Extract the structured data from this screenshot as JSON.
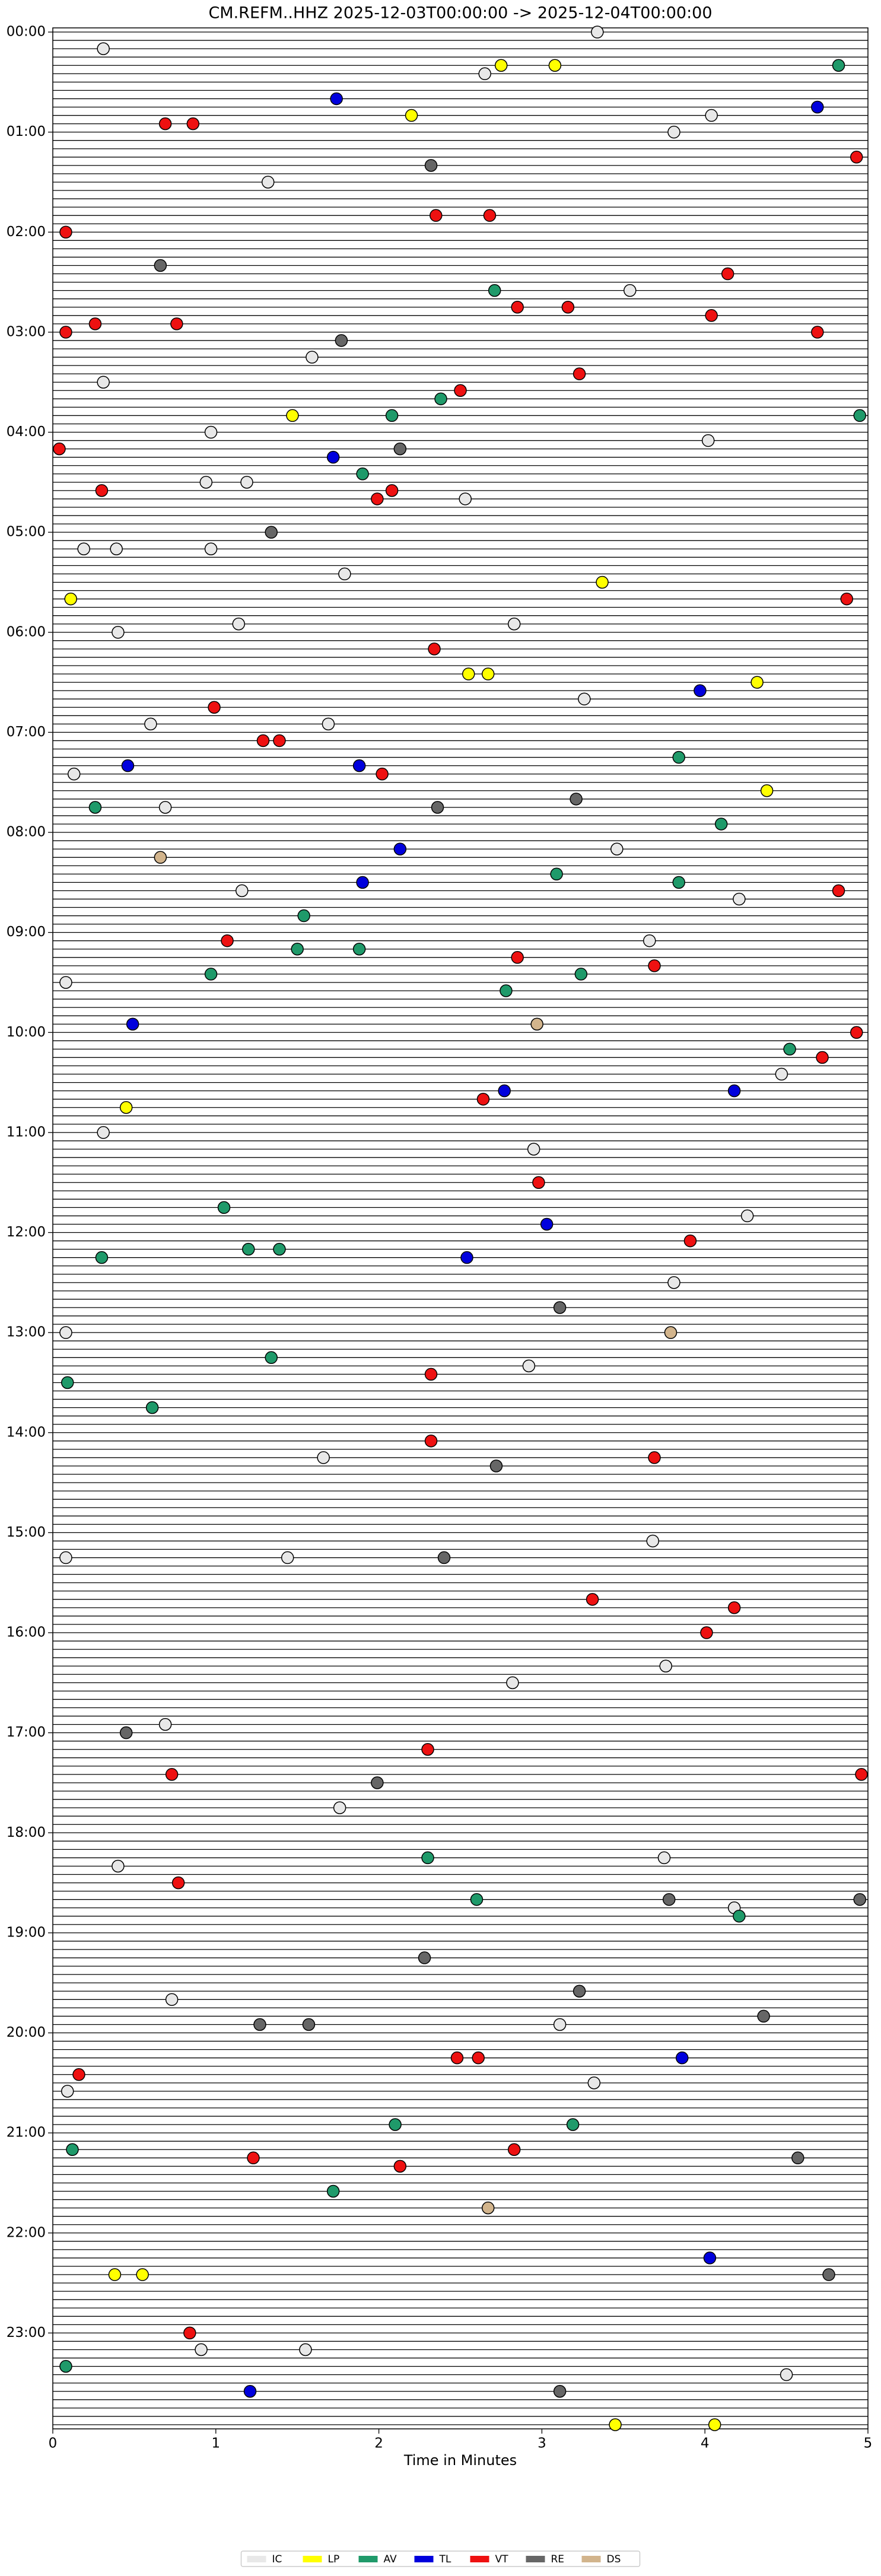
{
  "chart_data": {
    "type": "helicorder",
    "title": "CM.REFM..HHZ  2025-12-03T00:00:00 -> 2025-12-04T00:00:00",
    "x_label": "Time in Minutes",
    "xlim": [
      0,
      5
    ],
    "xticks": [
      0,
      1,
      2,
      3,
      4,
      5
    ],
    "ylim": [
      0,
      24
    ],
    "yticks": [
      {
        "value": 0,
        "label": "00:00"
      },
      {
        "value": 1,
        "label": "01:00"
      },
      {
        "value": 2,
        "label": "02:00"
      },
      {
        "value": 3,
        "label": "03:00"
      },
      {
        "value": 4,
        "label": "04:00"
      },
      {
        "value": 5,
        "label": "05:00"
      },
      {
        "value": 6,
        "label": "06:00"
      },
      {
        "value": 7,
        "label": "07:00"
      },
      {
        "value": 8,
        "label": "08:00"
      },
      {
        "value": 9,
        "label": "09:00"
      },
      {
        "value": 10,
        "label": "10:00"
      },
      {
        "value": 11,
        "label": "11:00"
      },
      {
        "value": 12,
        "label": "12:00"
      },
      {
        "value": 13,
        "label": "13:00"
      },
      {
        "value": 14,
        "label": "14:00"
      },
      {
        "value": 15,
        "label": "15:00"
      },
      {
        "value": 16,
        "label": "16:00"
      },
      {
        "value": 17,
        "label": "17:00"
      },
      {
        "value": 18,
        "label": "18:00"
      },
      {
        "value": 19,
        "label": "19:00"
      },
      {
        "value": 20,
        "label": "20:00"
      },
      {
        "value": 21,
        "label": "21:00"
      },
      {
        "value": 22,
        "label": "22:00"
      },
      {
        "value": 23,
        "label": "23:00"
      }
    ],
    "legend": "bottom",
    "series": [
      {
        "name": "IC",
        "color": "#e8e8e8",
        "x": [
          3.34,
          0.31,
          2.65,
          4.04,
          3.81,
          1.32,
          3.54,
          1.59,
          0.31,
          0.97,
          4.02,
          0.94,
          1.19,
          2.53,
          0.19,
          0.39,
          0.97,
          1.79,
          0.4,
          1.14,
          2.83,
          0.6,
          1.69,
          3.26,
          0.13,
          0.69,
          3.46,
          1.16,
          4.21,
          3.66,
          0.08,
          4.47,
          0.31,
          2.95,
          4.26,
          3.81,
          0.08,
          2.92,
          1.66,
          1.44,
          3.68,
          0.08,
          3.76,
          2.82,
          0.69,
          1.76,
          3.75,
          0.4,
          4.18,
          0.73,
          3.11,
          0.09,
          3.32,
          0.91,
          4.5,
          1.55
        ],
        "values": [
          0,
          0.1667,
          0.4167,
          0.8333,
          1.0,
          1.5,
          2.5833,
          3.25,
          3.5,
          4.0,
          4.0833,
          4.5,
          4.5,
          4.6667,
          5.1667,
          5.1667,
          5.1667,
          5.4167,
          6.0,
          5.9167,
          5.9167,
          6.9167,
          6.9167,
          6.6667,
          7.4167,
          7.75,
          8.1667,
          8.5833,
          8.6667,
          9.0833,
          9.5,
          10.4167,
          11.0,
          11.1667,
          11.8333,
          12.5,
          13.0,
          13.3333,
          14.25,
          15.25,
          15.0833,
          15.25,
          16.3333,
          16.5,
          16.9167,
          17.75,
          18.25,
          18.3333,
          18.75,
          19.6667,
          19.9167,
          20.5833,
          20.5,
          23.1667,
          23.4167,
          23.1667
        ]
      },
      {
        "name": "LP",
        "color": "#ffff00",
        "x": [
          2.75,
          3.08,
          2.2,
          1.47,
          3.37,
          0.11,
          2.55,
          2.67,
          4.32,
          4.38,
          0.45,
          0.38,
          0.55,
          3.45,
          4.06
        ],
        "values": [
          0.3333,
          0.3333,
          0.8333,
          3.8333,
          5.5,
          5.6667,
          6.4167,
          6.4167,
          6.5,
          7.5833,
          10.75,
          22.4167,
          22.4167,
          23.9167,
          23.9167
        ]
      },
      {
        "name": "AV",
        "color": "#1f9a6a",
        "x": [
          4.82,
          2.71,
          2.38,
          4.95,
          2.08,
          1.9,
          3.84,
          0.26,
          4.1,
          3.09,
          3.84,
          1.54,
          1.5,
          1.88,
          3.24,
          0.97,
          2.78,
          4.52,
          1.05,
          1.2,
          1.39,
          0.3,
          1.34,
          0.09,
          0.61,
          2.3,
          2.6,
          4.21,
          2.1,
          3.19,
          0.12,
          1.72,
          0.08
        ],
        "values": [
          0.3333,
          2.5833,
          3.6667,
          3.8333,
          3.8333,
          4.4167,
          7.25,
          7.75,
          7.9167,
          8.4167,
          8.5,
          8.8333,
          9.1667,
          9.1667,
          9.4167,
          9.4167,
          9.5833,
          10.1667,
          11.75,
          12.1667,
          12.1667,
          12.25,
          13.25,
          13.5,
          13.75,
          18.25,
          18.6667,
          18.8333,
          20.9167,
          20.9167,
          21.1667,
          21.5833,
          23.3333
        ]
      },
      {
        "name": "TL",
        "color": "#0000dd",
        "x": [
          1.74,
          4.69,
          1.72,
          3.97,
          0.46,
          1.88,
          2.13,
          1.9,
          0.49,
          4.18,
          2.77,
          3.03,
          2.54,
          3.86,
          4.03,
          1.21
        ],
        "values": [
          0.6667,
          0.75,
          4.25,
          6.5833,
          7.3333,
          7.3333,
          8.1667,
          8.5,
          9.9167,
          10.5833,
          10.5833,
          11.9167,
          12.25,
          20.25,
          22.25,
          23.5833
        ]
      },
      {
        "name": "VT",
        "color": "#ee1111",
        "x": [
          0.69,
          0.86,
          4.93,
          2.35,
          2.68,
          0.08,
          4.14,
          2.85,
          3.16,
          4.04,
          0.76,
          0.26,
          0.08,
          4.69,
          3.23,
          2.5,
          0.04,
          0.3,
          2.08,
          1.99,
          4.87,
          2.34,
          0.99,
          1.29,
          1.39,
          2.02,
          4.82,
          1.07,
          2.85,
          3.69,
          4.93,
          4.72,
          2.64,
          2.98,
          3.91,
          2.32,
          2.32,
          3.69,
          3.31,
          4.18,
          4.01,
          2.3,
          0.73,
          4.96,
          0.77,
          2.48,
          2.61,
          0.16,
          2.83,
          1.23,
          2.13,
          0.84
        ],
        "values": [
          0.9167,
          0.9167,
          1.25,
          1.8333,
          1.8333,
          2.0,
          2.4167,
          2.75,
          2.75,
          2.8333,
          2.9167,
          2.9167,
          3.0,
          3.0,
          3.4167,
          3.5833,
          4.1667,
          4.5833,
          4.5833,
          4.6667,
          5.6667,
          6.1667,
          6.75,
          7.0833,
          7.0833,
          7.4167,
          8.5833,
          9.0833,
          9.25,
          9.3333,
          10.0,
          10.25,
          10.6667,
          11.5,
          12.0833,
          13.4167,
          14.0833,
          14.25,
          15.6667,
          15.75,
          16.0,
          17.1667,
          17.4167,
          17.4167,
          18.5,
          20.25,
          20.25,
          20.4167,
          21.1667,
          21.25,
          21.3333,
          23.0
        ]
      },
      {
        "name": "RE",
        "color": "#666666",
        "x": [
          2.32,
          0.66,
          1.77,
          2.13,
          1.34,
          3.21,
          2.36,
          3.11,
          2.72,
          2.4,
          0.45,
          1.99,
          3.78,
          4.95,
          2.28,
          3.23,
          4.36,
          1.27,
          1.57,
          4.57,
          4.76,
          3.11
        ],
        "values": [
          1.3333,
          2.3333,
          3.0833,
          4.1667,
          5.0,
          7.6667,
          7.75,
          12.75,
          14.3333,
          15.25,
          17.0,
          17.5,
          18.6667,
          18.6667,
          19.25,
          19.5833,
          19.8333,
          19.9167,
          19.9167,
          21.25,
          22.4167,
          23.5833
        ]
      },
      {
        "name": "DS",
        "color": "#d2b48c",
        "x": [
          0.66,
          2.97,
          3.79,
          2.67
        ],
        "values": [
          8.25,
          9.9167,
          13.0,
          21.75
        ]
      }
    ]
  }
}
